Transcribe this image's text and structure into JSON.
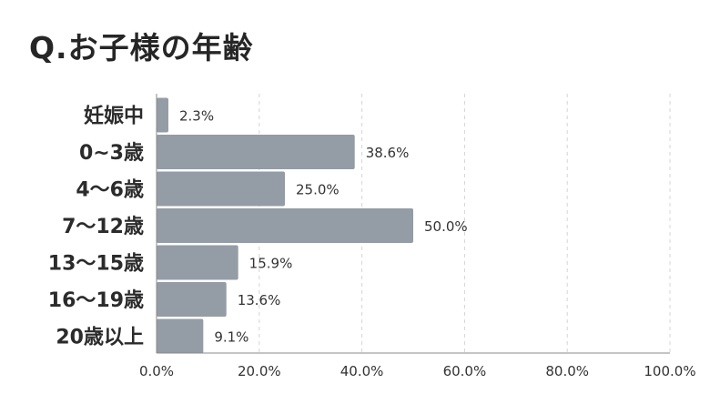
{
  "title": "Q.お子様の年齢",
  "chart_data": {
    "type": "bar",
    "orientation": "horizontal",
    "categories": [
      "妊娠中",
      "0~3歳",
      "4～6歳",
      "7～12歳",
      "13～15歳",
      "16～19歳",
      "20歳以上"
    ],
    "values": [
      2.3,
      38.6,
      25.0,
      50.0,
      15.9,
      13.6,
      9.1
    ],
    "value_labels": [
      "2.3%",
      "38.6%",
      "25.0%",
      "50.0%",
      "15.9%",
      "13.6%",
      "9.1%"
    ],
    "xlim": [
      0,
      100
    ],
    "x_ticks": [
      0,
      20,
      40,
      60,
      80,
      100
    ],
    "x_tick_labels": [
      "0.0%",
      "20.0%",
      "40.0%",
      "60.0%",
      "80.0%",
      "100.0%"
    ],
    "grid": true,
    "bar_color": "#949ca5"
  }
}
